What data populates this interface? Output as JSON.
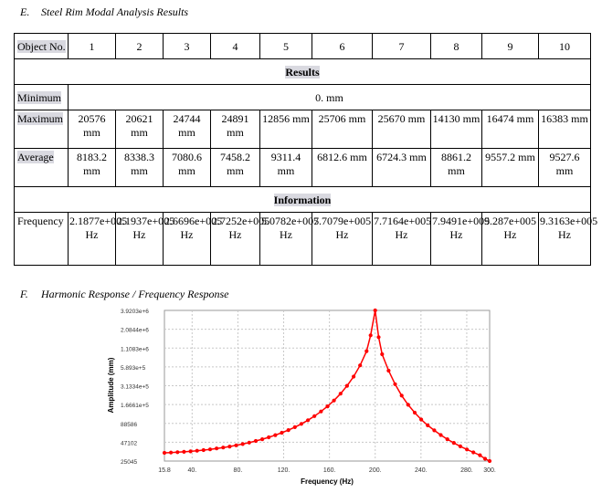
{
  "section_e": {
    "number": "E.",
    "title": "Steel Rim Modal Analysis Results"
  },
  "section_f": {
    "number": "F.",
    "title": "Harmonic Response / Frequency Response"
  },
  "table": {
    "header_label": "Object No.",
    "objects": [
      "1",
      "2",
      "3",
      "4",
      "5",
      "6",
      "7",
      "8",
      "9",
      "10"
    ],
    "results_title": "Results",
    "minimum": {
      "label": "Minimum",
      "value": "0. mm"
    },
    "maximum": {
      "label": "Maximum",
      "values": [
        "20576 mm",
        "20621 mm",
        "24744 mm",
        "24891 mm",
        "12856 mm",
        "25706 mm",
        "25670 mm",
        "14130 mm",
        "16474 mm",
        "16383 mm"
      ]
    },
    "average": {
      "label": "Average",
      "values": [
        "8183.2 mm",
        "8338.3 mm",
        "7080.6 mm",
        "7458.2 mm",
        "9311.4 mm",
        "6812.6 mm",
        "6724.3 mm",
        "8861.2 mm",
        "9557.2 mm",
        "9527.6 mm"
      ]
    },
    "information_title": "Information",
    "frequency": {
      "label": "Frequency",
      "values": [
        "2.1877e+005 Hz",
        "2.1937e+005 Hz",
        "2.6696e+005 Hz",
        "2.7252e+005 Hz",
        "5.0782e+005 Hz",
        "7.7079e+005 Hz",
        "7.7164e+005 Hz",
        "7.9491e+005 Hz",
        "9.287e+005 Hz",
        "9.3163e+005 Hz"
      ]
    }
  },
  "chart_data": {
    "type": "line",
    "xlabel": "Frequency (Hz)",
    "ylabel": "Amplitude (mm)",
    "x_ticks": [
      "15.8",
      "40.",
      "80.",
      "120.",
      "160.",
      "200.",
      "240.",
      "280.",
      "300."
    ],
    "y_ticks": [
      "25045",
      "47102",
      "88586",
      "1.6661e+5",
      "3.1334e+5",
      "5.893e+5",
      "1.1083e+6",
      "2.0844e+6",
      "3.9203e+6"
    ],
    "scale": "log-y",
    "xlim": [
      15.8,
      300
    ],
    "ylim": [
      25045,
      3920300
    ],
    "grid": true,
    "series": [
      {
        "color": "#ff0000",
        "x": [
          15.8,
          21.5,
          27.2,
          32.9,
          38.6,
          44.3,
          50.0,
          55.7,
          61.4,
          67.1,
          72.8,
          78.5,
          84.2,
          89.9,
          95.6,
          101.3,
          107.0,
          112.7,
          118.4,
          124.1,
          129.8,
          135.5,
          141.2,
          146.9,
          152.6,
          158.3,
          164.0,
          169.7,
          175.4,
          181.1,
          186.8,
          192.5,
          196.0,
          200.0,
          203.0,
          206.0,
          211.7,
          217.4,
          223.1,
          228.8,
          234.5,
          240.2,
          245.9,
          251.6,
          257.3,
          263.0,
          268.7,
          274.4,
          280.1,
          285.8,
          291.5,
          296.0,
          300.0
        ],
        "y": [
          33000,
          33300,
          33700,
          34100,
          34700,
          35400,
          36200,
          37100,
          38200,
          39400,
          40800,
          42400,
          44300,
          46500,
          49100,
          52100,
          55600,
          59800,
          64800,
          70800,
          78100,
          87200,
          98600,
          113000,
          132000,
          157000,
          191000,
          240000,
          312000,
          426000,
          620000,
          1000000,
          1700000,
          3920300,
          1600000,
          900000,
          520000,
          330000,
          225000,
          165000,
          127000,
          101000,
          83000,
          70000,
          60000,
          52000,
          46000,
          41000,
          37000,
          33500,
          30500,
          27000,
          25045
        ]
      }
    ]
  }
}
